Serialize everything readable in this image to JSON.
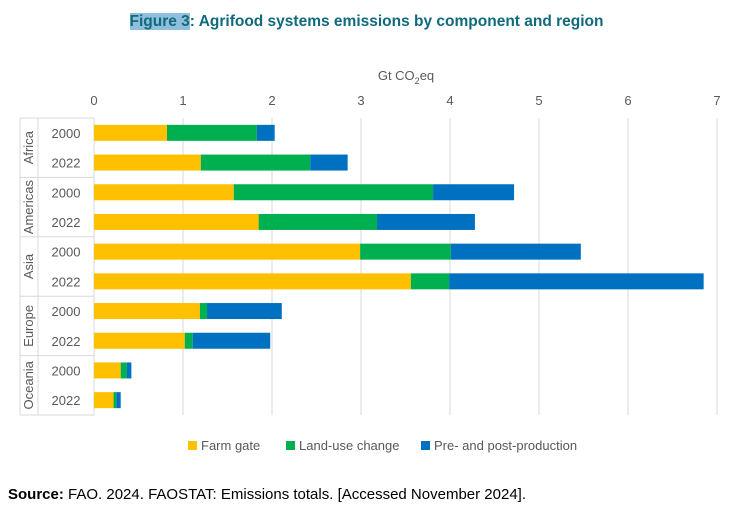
{
  "figure_label": "Figure 3",
  "figure_title": ": Agrifood systems emissions by component and region",
  "source_label": "Source:",
  "source_text": " FAO. 2024. FAOSTAT: Emissions totals. [Accessed November 2024].",
  "chart_data": {
    "type": "bar",
    "orientation": "horizontal",
    "stacked": true,
    "title": "Agrifood systems emissions by component and region",
    "xlabel": "Gt CO2eq",
    "xlim": [
      0,
      7
    ],
    "xticks": [
      0,
      1,
      2,
      3,
      4,
      5,
      6,
      7
    ],
    "grid": true,
    "legend_position": "bottom",
    "groups": [
      {
        "region": "Africa",
        "years": [
          "2000",
          "2022"
        ]
      },
      {
        "region": "Americas",
        "years": [
          "2000",
          "2022"
        ]
      },
      {
        "region": "Asia",
        "years": [
          "2000",
          "2022"
        ]
      },
      {
        "region": "Europe",
        "years": [
          "2000",
          "2022"
        ]
      },
      {
        "region": "Oceania",
        "years": [
          "2000",
          "2022"
        ]
      }
    ],
    "categories": [
      "Africa 2000",
      "Africa 2022",
      "Americas 2000",
      "Americas 2022",
      "Asia 2000",
      "Asia 2022",
      "Europe 2000",
      "Europe 2022",
      "Oceania 2000",
      "Oceania 2022"
    ],
    "series": [
      {
        "name": "Farm gate",
        "color": "#ffc000",
        "values": [
          0.82,
          1.2,
          1.57,
          1.85,
          2.99,
          3.56,
          1.19,
          1.02,
          0.3,
          0.22
        ]
      },
      {
        "name": "Land-use change",
        "color": "#00b050",
        "values": [
          1.01,
          1.23,
          2.24,
          1.33,
          1.02,
          0.43,
          0.08,
          0.09,
          0.07,
          0.03
        ]
      },
      {
        "name": "Pre- and post-production",
        "color": "#0070c0",
        "values": [
          0.2,
          0.42,
          0.91,
          1.1,
          1.46,
          2.86,
          0.84,
          0.87,
          0.05,
          0.05
        ]
      }
    ]
  }
}
